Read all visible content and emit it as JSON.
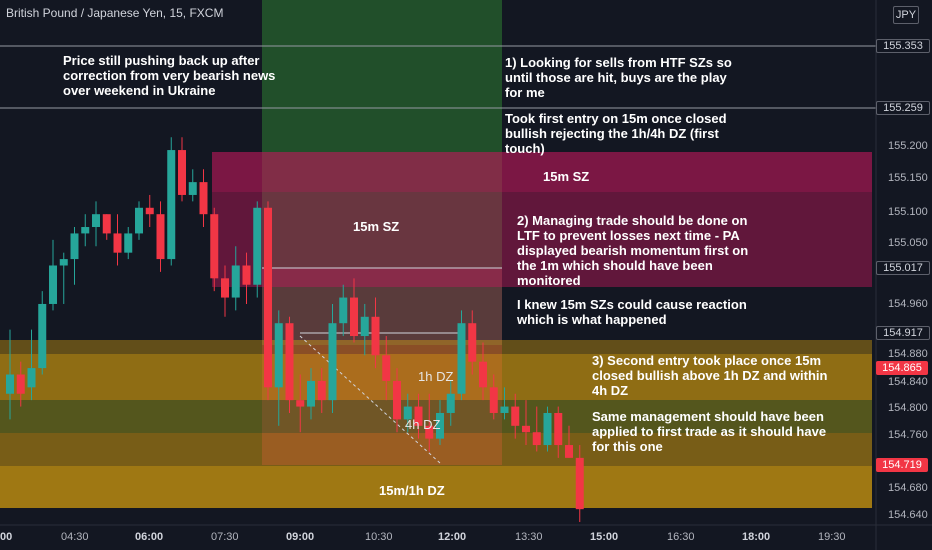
{
  "header": {
    "symbol_label": "British Pound / Japanese Yen, 15, FXCM",
    "currency_button": "JPY"
  },
  "colors": {
    "background": "#131722",
    "bull": "#26a69a",
    "bear": "#f23645",
    "demand_zone": "#f5b40a",
    "supply_zone": "#c2185b",
    "long_position": "#2e7d32",
    "price_line": "#9598a1",
    "red_label": "#f23645"
  },
  "annotations": {
    "note1": [
      "Price still pushing back up after",
      "correction from very bearish news",
      "over weekend in Ukraine"
    ],
    "note2": [
      "1) Looking for sells from HTF SZs so",
      "until those are hit, buys are the play",
      "for me"
    ],
    "note3": [
      "Took first entry on 15m once closed",
      "bullish rejecting the 1h/4h DZ (first",
      "touch)"
    ],
    "note4": [
      "2) Managing trade should be done on",
      "LTF to prevent losses next time - PA",
      "displayed bearish momentum first on",
      "the 1m which should have been",
      "monitored"
    ],
    "note5": [
      "I knew 15m SZs could cause reaction",
      "which is what happened"
    ],
    "note6": [
      "3) Second entry took place once 15m",
      "closed bullish above 1h DZ and within",
      "4h DZ"
    ],
    "note7": [
      "Same management should have been",
      "applied to first trade as it should have",
      "for this one"
    ]
  },
  "zones": {
    "sz_15m_upper": "15m SZ",
    "sz_15m_lower": "15m SZ",
    "dz_1h": "1h DZ",
    "dz_4h": "4h DZ",
    "dz_15m_1h": "15m/1h DZ"
  },
  "price_axis": {
    "ticks": [
      "155.200",
      "155.150",
      "155.100",
      "155.050",
      "154.960",
      "154.880",
      "154.840",
      "154.800",
      "154.760",
      "154.680",
      "154.640"
    ],
    "labels": [
      {
        "text": "155.353",
        "style": "outline"
      },
      {
        "text": "155.259",
        "style": "outline"
      },
      {
        "text": "155.017",
        "style": "outline"
      },
      {
        "text": "154.917",
        "style": "outline"
      },
      {
        "text": "154.865",
        "style": "red"
      },
      {
        "text": "154.719",
        "style": "red"
      }
    ]
  },
  "time_axis": [
    {
      "text": "00",
      "bold": true
    },
    {
      "text": "04:30",
      "bold": false
    },
    {
      "text": "06:00",
      "bold": true
    },
    {
      "text": "07:30",
      "bold": false
    },
    {
      "text": "09:00",
      "bold": true
    },
    {
      "text": "10:30",
      "bold": false
    },
    {
      "text": "12:00",
      "bold": true
    },
    {
      "text": "13:30",
      "bold": false
    },
    {
      "text": "15:00",
      "bold": true
    },
    {
      "text": "16:30",
      "bold": false
    },
    {
      "text": "18:00",
      "bold": true
    },
    {
      "text": "19:30",
      "bold": false
    }
  ],
  "chart_data": {
    "type": "candlestick",
    "symbol": "GBPJPY",
    "timeframe": "15",
    "candles": [
      {
        "o": 154.82,
        "h": 154.92,
        "l": 154.78,
        "c": 154.85
      },
      {
        "o": 154.85,
        "h": 154.87,
        "l": 154.8,
        "c": 154.82
      },
      {
        "o": 154.83,
        "h": 154.92,
        "l": 154.81,
        "c": 154.86
      },
      {
        "o": 154.86,
        "h": 154.98,
        "l": 154.85,
        "c": 154.96
      },
      {
        "o": 154.96,
        "h": 155.06,
        "l": 154.95,
        "c": 155.02
      },
      {
        "o": 155.02,
        "h": 155.04,
        "l": 154.96,
        "c": 155.03
      },
      {
        "o": 155.03,
        "h": 155.08,
        "l": 154.99,
        "c": 155.07
      },
      {
        "o": 155.07,
        "h": 155.1,
        "l": 155.05,
        "c": 155.08
      },
      {
        "o": 155.08,
        "h": 155.12,
        "l": 155.05,
        "c": 155.1
      },
      {
        "o": 155.1,
        "h": 155.1,
        "l": 155.06,
        "c": 155.07
      },
      {
        "o": 155.07,
        "h": 155.1,
        "l": 155.02,
        "c": 155.04
      },
      {
        "o": 155.04,
        "h": 155.08,
        "l": 155.03,
        "c": 155.07
      },
      {
        "o": 155.07,
        "h": 155.12,
        "l": 155.06,
        "c": 155.11
      },
      {
        "o": 155.11,
        "h": 155.13,
        "l": 155.08,
        "c": 155.1
      },
      {
        "o": 155.1,
        "h": 155.12,
        "l": 155.01,
        "c": 155.03
      },
      {
        "o": 155.03,
        "h": 155.22,
        "l": 155.02,
        "c": 155.2
      },
      {
        "o": 155.2,
        "h": 155.22,
        "l": 155.12,
        "c": 155.13
      },
      {
        "o": 155.13,
        "h": 155.17,
        "l": 155.12,
        "c": 155.15
      },
      {
        "o": 155.15,
        "h": 155.17,
        "l": 155.08,
        "c": 155.1
      },
      {
        "o": 155.1,
        "h": 155.11,
        "l": 154.98,
        "c": 155.0
      },
      {
        "o": 155.0,
        "h": 155.02,
        "l": 154.94,
        "c": 154.97
      },
      {
        "o": 154.97,
        "h": 155.05,
        "l": 154.95,
        "c": 155.02
      },
      {
        "o": 155.02,
        "h": 155.04,
        "l": 154.96,
        "c": 154.99
      },
      {
        "o": 154.99,
        "h": 155.12,
        "l": 154.97,
        "c": 155.11
      },
      {
        "o": 155.11,
        "h": 155.12,
        "l": 154.81,
        "c": 154.83
      },
      {
        "o": 154.83,
        "h": 154.95,
        "l": 154.77,
        "c": 154.93
      },
      {
        "o": 154.93,
        "h": 154.94,
        "l": 154.79,
        "c": 154.81
      },
      {
        "o": 154.81,
        "h": 154.85,
        "l": 154.76,
        "c": 154.8
      },
      {
        "o": 154.8,
        "h": 154.86,
        "l": 154.78,
        "c": 154.84
      },
      {
        "o": 154.84,
        "h": 154.86,
        "l": 154.79,
        "c": 154.81
      },
      {
        "o": 154.81,
        "h": 154.96,
        "l": 154.79,
        "c": 154.93
      },
      {
        "o": 154.93,
        "h": 154.99,
        "l": 154.91,
        "c": 154.97
      },
      {
        "o": 154.97,
        "h": 155.0,
        "l": 154.9,
        "c": 154.91
      },
      {
        "o": 154.91,
        "h": 154.96,
        "l": 154.88,
        "c": 154.94
      },
      {
        "o": 154.94,
        "h": 154.97,
        "l": 154.86,
        "c": 154.88
      },
      {
        "o": 154.88,
        "h": 154.91,
        "l": 154.81,
        "c": 154.84
      },
      {
        "o": 154.84,
        "h": 154.86,
        "l": 154.76,
        "c": 154.78
      },
      {
        "o": 154.78,
        "h": 154.82,
        "l": 154.76,
        "c": 154.8
      },
      {
        "o": 154.8,
        "h": 154.82,
        "l": 154.75,
        "c": 154.77
      },
      {
        "o": 154.77,
        "h": 154.82,
        "l": 154.73,
        "c": 154.75
      },
      {
        "o": 154.75,
        "h": 154.81,
        "l": 154.74,
        "c": 154.79
      },
      {
        "o": 154.79,
        "h": 154.84,
        "l": 154.77,
        "c": 154.82
      },
      {
        "o": 154.82,
        "h": 154.95,
        "l": 154.81,
        "c": 154.93
      },
      {
        "o": 154.93,
        "h": 154.95,
        "l": 154.85,
        "c": 154.87
      },
      {
        "o": 154.87,
        "h": 154.9,
        "l": 154.81,
        "c": 154.83
      },
      {
        "o": 154.83,
        "h": 154.85,
        "l": 154.78,
        "c": 154.79
      },
      {
        "o": 154.79,
        "h": 154.83,
        "l": 154.78,
        "c": 154.8
      },
      {
        "o": 154.8,
        "h": 154.82,
        "l": 154.75,
        "c": 154.77
      },
      {
        "o": 154.77,
        "h": 154.81,
        "l": 154.74,
        "c": 154.76
      },
      {
        "o": 154.76,
        "h": 154.8,
        "l": 154.73,
        "c": 154.74
      },
      {
        "o": 154.74,
        "h": 154.8,
        "l": 154.73,
        "c": 154.79
      },
      {
        "o": 154.79,
        "h": 154.8,
        "l": 154.72,
        "c": 154.74
      },
      {
        "o": 154.74,
        "h": 154.77,
        "l": 154.72,
        "c": 154.72
      },
      {
        "o": 154.72,
        "h": 154.74,
        "l": 154.62,
        "c": 154.64
      }
    ]
  }
}
